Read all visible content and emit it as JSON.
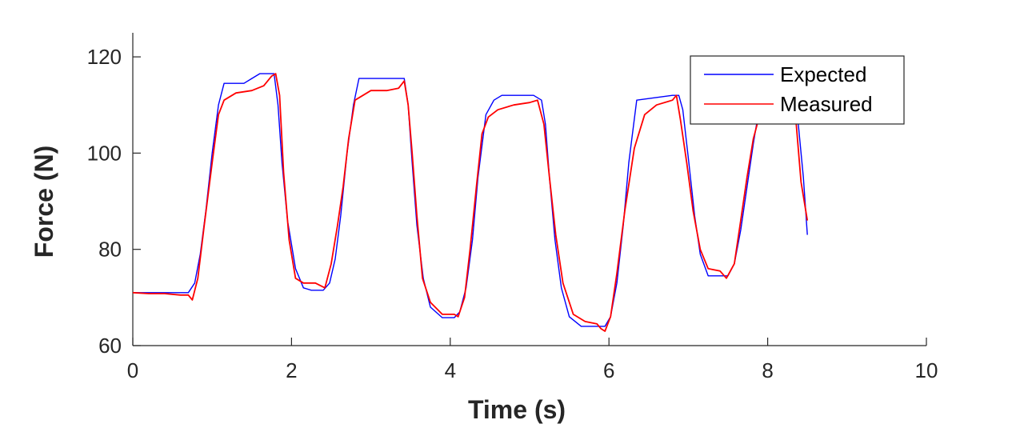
{
  "chart_data": {
    "type": "line",
    "title": "",
    "xlabel": "Time (s)",
    "ylabel": "Force (N)",
    "xlim": [
      0,
      10
    ],
    "ylim": [
      60,
      125
    ],
    "xticks": [
      0,
      2,
      4,
      6,
      8,
      10
    ],
    "yticks": [
      60,
      80,
      100,
      120
    ],
    "xtick_labels": [
      "0",
      "2",
      "4",
      "6",
      "8",
      "10"
    ],
    "ytick_labels": [
      "60",
      "80",
      "100",
      "120"
    ],
    "grid": false,
    "legend_position": "top-right",
    "series": [
      {
        "name": "Expected",
        "color": "#0000ff",
        "x": [
          0,
          0.7,
          0.78,
          0.85,
          0.92,
          1.0,
          1.08,
          1.15,
          1.4,
          1.5,
          1.6,
          1.78,
          1.83,
          1.88,
          1.95,
          2.05,
          2.15,
          2.25,
          2.4,
          2.48,
          2.55,
          2.62,
          2.7,
          2.78,
          2.85,
          3.3,
          3.42,
          3.47,
          3.52,
          3.58,
          3.66,
          3.75,
          3.9,
          4.05,
          4.12,
          4.2,
          4.28,
          4.35,
          4.45,
          4.55,
          4.65,
          5.05,
          5.15,
          5.2,
          5.25,
          5.32,
          5.4,
          5.5,
          5.65,
          5.85,
          5.95,
          6.02,
          6.1,
          6.18,
          6.25,
          6.35,
          6.8,
          6.88,
          6.93,
          7.0,
          7.08,
          7.15,
          7.25,
          7.5,
          7.58,
          7.66,
          7.74,
          7.82,
          7.9,
          8.22,
          8.3,
          8.38,
          8.45,
          8.5
        ],
        "y": [
          71,
          71,
          73,
          79,
          88,
          100,
          110,
          114.5,
          114.5,
          115.5,
          116.5,
          116.5,
          110,
          98,
          86,
          76,
          72,
          71.5,
          71.5,
          73,
          78,
          87,
          100,
          110,
          115.5,
          115.5,
          115.5,
          110,
          98,
          85,
          74,
          68,
          65.8,
          65.8,
          67,
          72,
          82,
          95,
          108,
          111,
          112,
          112,
          111,
          106,
          95,
          82,
          72,
          66,
          64,
          64,
          64,
          66,
          73,
          85,
          98,
          111,
          112,
          112,
          109,
          99,
          87,
          79,
          74.5,
          74.5,
          77,
          84,
          93,
          102,
          110,
          120,
          118,
          107,
          95,
          83
        ]
      },
      {
        "name": "Measured",
        "color": "#ff0000",
        "x": [
          0,
          0.2,
          0.4,
          0.6,
          0.7,
          0.75,
          0.82,
          0.9,
          1.0,
          1.08,
          1.15,
          1.3,
          1.5,
          1.65,
          1.75,
          1.8,
          1.85,
          1.9,
          1.97,
          2.05,
          2.15,
          2.3,
          2.42,
          2.5,
          2.58,
          2.65,
          2.72,
          2.8,
          3.0,
          3.2,
          3.35,
          3.42,
          3.47,
          3.52,
          3.58,
          3.65,
          3.75,
          3.9,
          4.05,
          4.1,
          4.18,
          4.25,
          4.33,
          4.4,
          4.48,
          4.6,
          4.8,
          5.0,
          5.1,
          5.18,
          5.25,
          5.33,
          5.42,
          5.55,
          5.7,
          5.85,
          5.9,
          5.95,
          6.02,
          6.1,
          6.2,
          6.32,
          6.45,
          6.6,
          6.8,
          6.85,
          6.9,
          6.98,
          7.06,
          7.15,
          7.25,
          7.4,
          7.48,
          7.58,
          7.66,
          7.74,
          7.82,
          7.9,
          8.1,
          8.25,
          8.3,
          8.36,
          8.42,
          8.5
        ],
        "y": [
          71,
          70.8,
          70.8,
          70.5,
          70.5,
          69.5,
          74,
          85,
          98,
          108,
          111,
          112.5,
          113,
          114,
          116,
          116.5,
          112,
          96,
          82,
          74,
          73,
          73,
          72,
          77,
          85,
          93,
          103,
          111,
          113,
          113,
          113.5,
          115,
          110,
          100,
          87,
          74,
          69,
          66.5,
          66.5,
          66,
          70,
          80,
          93,
          104,
          107.5,
          109,
          110,
          110.5,
          111,
          106,
          95,
          83,
          73,
          66.5,
          65,
          64.5,
          63.5,
          63,
          66,
          75,
          88,
          101,
          108,
          110,
          111,
          112,
          107,
          98,
          88,
          80,
          76,
          75.5,
          74,
          77,
          86,
          95,
          103,
          108,
          112,
          118,
          117,
          106,
          94,
          86
        ]
      }
    ]
  }
}
